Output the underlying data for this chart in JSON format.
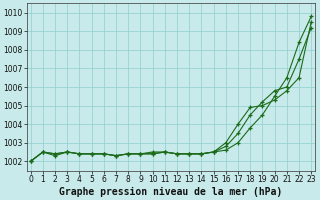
{
  "title": "Graphe pression niveau de la mer (hPa)",
  "bg_color": "#c8eaea",
  "grid_color": "#8ecfcf",
  "line_color": "#1a6b1a",
  "ylim": [
    1001.5,
    1010.5
  ],
  "xlim": [
    -0.3,
    23.3
  ],
  "yticks": [
    1002,
    1003,
    1004,
    1005,
    1006,
    1007,
    1008,
    1009,
    1010
  ],
  "xticks": [
    0,
    1,
    2,
    3,
    4,
    5,
    6,
    7,
    8,
    9,
    10,
    11,
    12,
    13,
    14,
    15,
    16,
    17,
    18,
    19,
    20,
    21,
    22,
    23
  ],
  "line1": [
    1002.0,
    1002.5,
    1002.4,
    1002.5,
    1002.4,
    1002.4,
    1002.4,
    1002.3,
    1002.4,
    1002.4,
    1002.4,
    1002.5,
    1002.4,
    1002.4,
    1002.4,
    1002.5,
    1002.6,
    1003.0,
    1003.8,
    1004.5,
    1005.5,
    1006.5,
    1008.4,
    1009.8
  ],
  "line2": [
    1002.0,
    1002.5,
    1002.4,
    1002.5,
    1002.4,
    1002.4,
    1002.4,
    1002.3,
    1002.4,
    1002.4,
    1002.4,
    1002.5,
    1002.4,
    1002.4,
    1002.4,
    1002.5,
    1002.8,
    1003.5,
    1004.5,
    1005.2,
    1005.8,
    1006.0,
    1007.5,
    1009.2
  ],
  "line3": [
    1002.0,
    1002.5,
    1002.3,
    1002.5,
    1002.4,
    1002.4,
    1002.4,
    1002.3,
    1002.4,
    1002.4,
    1002.5,
    1002.5,
    1002.4,
    1002.4,
    1002.4,
    1002.5,
    1003.0,
    1004.0,
    1004.9,
    1005.0,
    1005.3,
    1005.8,
    1006.5,
    1009.5
  ],
  "title_fontsize": 7,
  "tick_fontsize": 5.5
}
